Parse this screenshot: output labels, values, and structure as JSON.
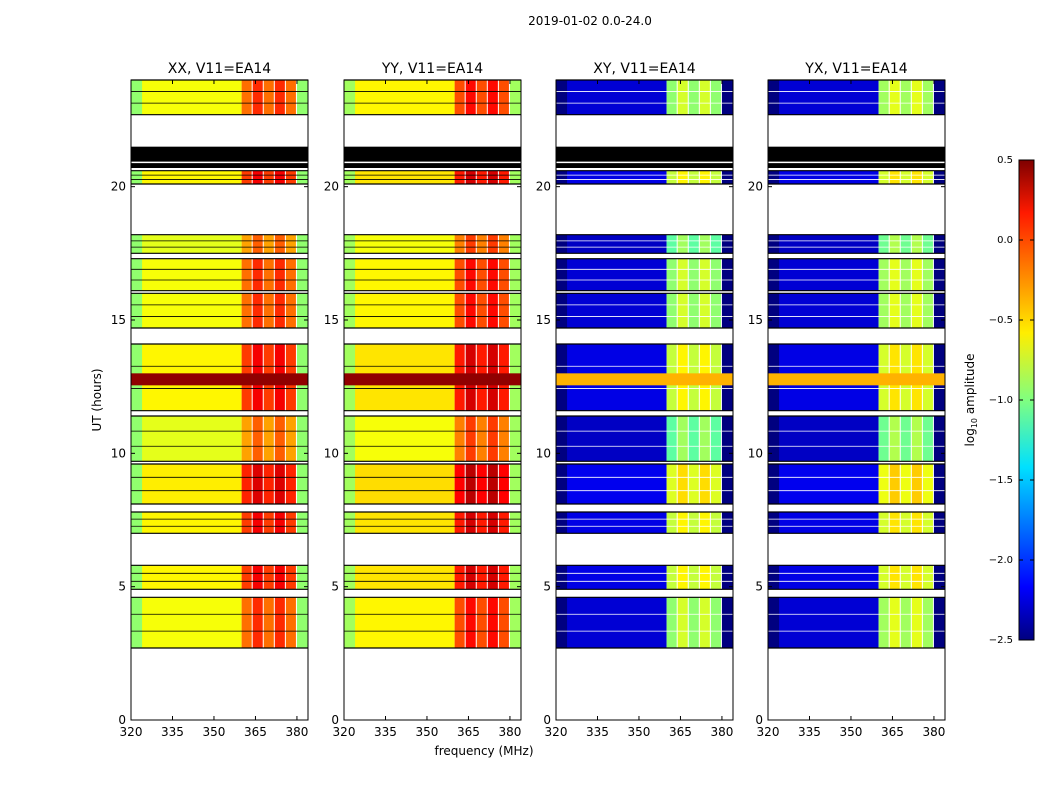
{
  "chart_data": {
    "type": "heatmap",
    "title": "2019-01-02 0.0-24.0",
    "xlabel": "frequency (MHz)",
    "ylabel": "UT (hours)",
    "xlim": [
      320,
      384
    ],
    "ylim": [
      0,
      24
    ],
    "xticks": [
      "320",
      "335",
      "350",
      "365",
      "380"
    ],
    "yticks": [
      "0",
      "5",
      "10",
      "15",
      "20"
    ],
    "colorbar": {
      "label_main": "log",
      "label_sub": "10",
      "label_rest": " amplitude",
      "range": [
        -2.5,
        0.5
      ],
      "ticks": [
        "0.5",
        "0.0",
        "−0.5",
        "−1.0",
        "−1.5",
        "−2.0",
        "−2.5"
      ],
      "colormap": "jet"
    },
    "flagged_color": "#000000",
    "data_bands_hours": [
      {
        "t0": 2.7,
        "t1": 4.6,
        "scale": 1.0
      },
      {
        "t0": 4.9,
        "t1": 5.8,
        "scale": 1.1
      },
      {
        "t0": 7.0,
        "t1": 7.8,
        "scale": 1.1
      },
      {
        "t0": 8.1,
        "t1": 9.6,
        "scale": 1.15
      },
      {
        "t0": 9.7,
        "t1": 11.4,
        "scale": 0.9
      },
      {
        "t0": 11.6,
        "t1": 14.1,
        "scale": 1.1
      },
      {
        "t0": 14.7,
        "t1": 16.0,
        "scale": 1.0
      },
      {
        "t0": 16.1,
        "t1": 17.3,
        "scale": 1.0
      },
      {
        "t0": 17.5,
        "t1": 18.2,
        "scale": 0.9
      },
      {
        "t0": 20.1,
        "t1": 20.6,
        "scale": 1.1
      },
      {
        "t0": 22.7,
        "t1": 24.0,
        "scale": 1.0
      }
    ],
    "flagged_bands_hours": [
      [
        20.7,
        21.5
      ]
    ],
    "strong_band_hours": [
      12.55,
      13.0
    ],
    "panels": [
      {
        "title": "XX, V11=EA14",
        "low_freq_value": -0.65,
        "high_freq_value": -0.15,
        "strong_value": 0.45
      },
      {
        "title": "YY, V11=EA14",
        "low_freq_value": -0.6,
        "high_freq_value": -0.05,
        "strong_value": 0.45
      },
      {
        "title": "XY, V11=EA14",
        "low_freq_value": -2.25,
        "high_freq_value": -0.9,
        "strong_value": -0.4
      },
      {
        "title": "YX, V11=EA14",
        "low_freq_value": -2.25,
        "high_freq_value": -0.85,
        "strong_value": -0.4
      }
    ]
  }
}
